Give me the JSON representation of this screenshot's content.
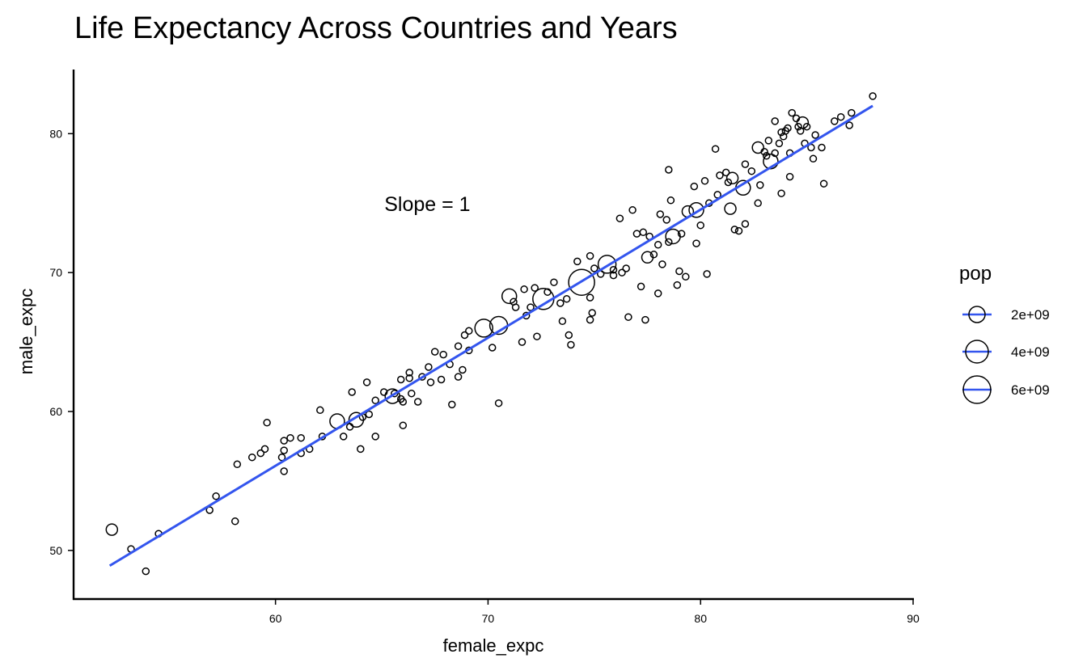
{
  "chart_data": {
    "type": "scatter",
    "title": "Life Expectancy Across Countries and Years",
    "xlabel": "female_expc",
    "ylabel": "male_expc",
    "xlim": [
      50.5,
      90
    ],
    "ylim": [
      46.5,
      84.5
    ],
    "xticks": [
      60,
      70,
      80,
      90
    ],
    "yticks": [
      50,
      60,
      70,
      80
    ],
    "grid": false,
    "annotation": {
      "text": "Slope = 1",
      "x": 70,
      "y": 74.9
    },
    "fit_line": {
      "x": [
        52.2,
        88.1
      ],
      "y": [
        48.9,
        82.0
      ],
      "color": "#3355ee"
    },
    "size_legend": {
      "title": "pop",
      "position": "right",
      "entries": [
        {
          "label": "2e+09",
          "value": 2000000000
        },
        {
          "label": "4e+09",
          "value": 4000000000
        },
        {
          "label": "6e+09",
          "value": 6000000000
        }
      ]
    },
    "points": [
      [
        52.3,
        51.5,
        2
      ],
      [
        53.2,
        50.1,
        1
      ],
      [
        53.9,
        48.5,
        1
      ],
      [
        54.5,
        51.2,
        1
      ],
      [
        56.9,
        52.9,
        1
      ],
      [
        57.2,
        53.9,
        1
      ],
      [
        58.1,
        52.1,
        1
      ],
      [
        58.2,
        56.2,
        1
      ],
      [
        58.9,
        56.7,
        1
      ],
      [
        59.3,
        57.0,
        1
      ],
      [
        59.5,
        57.3,
        1
      ],
      [
        59.6,
        59.2,
        1
      ],
      [
        60.3,
        56.7,
        1
      ],
      [
        60.4,
        55.7,
        1
      ],
      [
        60.4,
        57.2,
        1
      ],
      [
        60.4,
        57.9,
        1
      ],
      [
        60.7,
        58.1,
        1
      ],
      [
        61.2,
        58.1,
        1
      ],
      [
        61.2,
        57.0,
        1
      ],
      [
        61.6,
        57.3,
        1
      ],
      [
        62.1,
        60.1,
        1
      ],
      [
        62.2,
        58.2,
        1
      ],
      [
        62.9,
        59.3,
        3
      ],
      [
        63.2,
        58.2,
        1
      ],
      [
        63.5,
        58.9,
        1
      ],
      [
        63.6,
        61.4,
        1
      ],
      [
        63.8,
        59.4,
        3
      ],
      [
        64.0,
        57.3,
        1
      ],
      [
        64.1,
        59.6,
        1
      ],
      [
        64.3,
        62.1,
        1
      ],
      [
        64.4,
        59.8,
        1
      ],
      [
        64.7,
        58.2,
        1
      ],
      [
        64.7,
        60.8,
        1
      ],
      [
        65.1,
        61.4,
        1
      ],
      [
        65.5,
        61.1,
        3
      ],
      [
        65.6,
        61.3,
        1
      ],
      [
        65.9,
        60.9,
        1
      ],
      [
        65.9,
        62.3,
        1
      ],
      [
        66.0,
        60.7,
        1
      ],
      [
        66.0,
        59.0,
        1
      ],
      [
        66.3,
        62.4,
        1
      ],
      [
        66.3,
        62.8,
        1
      ],
      [
        66.4,
        61.3,
        1
      ],
      [
        66.7,
        60.7,
        1
      ],
      [
        66.9,
        62.5,
        1
      ],
      [
        67.2,
        63.2,
        1
      ],
      [
        67.3,
        62.1,
        1
      ],
      [
        67.5,
        64.3,
        1
      ],
      [
        67.8,
        62.3,
        1
      ],
      [
        67.9,
        64.1,
        1
      ],
      [
        68.2,
        63.4,
        1
      ],
      [
        68.3,
        60.5,
        1
      ],
      [
        68.6,
        62.5,
        1
      ],
      [
        68.6,
        64.7,
        1
      ],
      [
        68.8,
        63.0,
        1
      ],
      [
        68.9,
        65.5,
        1
      ],
      [
        69.1,
        65.8,
        1
      ],
      [
        69.1,
        64.4,
        1
      ],
      [
        69.8,
        66.0,
        4
      ],
      [
        70.2,
        64.6,
        1
      ],
      [
        70.5,
        66.2,
        4
      ],
      [
        70.5,
        60.6,
        1
      ],
      [
        71.0,
        68.3,
        3
      ],
      [
        71.2,
        67.9,
        1
      ],
      [
        71.3,
        67.5,
        1
      ],
      [
        71.6,
        65.0,
        1
      ],
      [
        71.7,
        68.8,
        1
      ],
      [
        71.8,
        66.9,
        1
      ],
      [
        72.0,
        67.5,
        1
      ],
      [
        72.2,
        68.9,
        1
      ],
      [
        72.3,
        65.4,
        1
      ],
      [
        72.6,
        68.1,
        5
      ],
      [
        72.8,
        68.6,
        1
      ],
      [
        73.1,
        69.3,
        1
      ],
      [
        73.4,
        67.8,
        1
      ],
      [
        73.5,
        66.5,
        1
      ],
      [
        73.7,
        68.1,
        1
      ],
      [
        73.8,
        65.5,
        1
      ],
      [
        73.9,
        64.8,
        1
      ],
      [
        74.2,
        70.8,
        1
      ],
      [
        74.4,
        69.3,
        6
      ],
      [
        74.8,
        71.2,
        1
      ],
      [
        74.8,
        66.6,
        1
      ],
      [
        74.8,
        68.2,
        1
      ],
      [
        74.9,
        67.1,
        1
      ],
      [
        75.0,
        70.3,
        1
      ],
      [
        75.3,
        69.9,
        1
      ],
      [
        75.6,
        70.6,
        4
      ],
      [
        75.9,
        69.8,
        1
      ],
      [
        75.9,
        70.2,
        1
      ],
      [
        76.2,
        73.9,
        1
      ],
      [
        76.3,
        70.0,
        1
      ],
      [
        76.5,
        70.3,
        1
      ],
      [
        76.6,
        66.8,
        1
      ],
      [
        76.8,
        74.5,
        1
      ],
      [
        77.0,
        72.8,
        1
      ],
      [
        77.2,
        69.0,
        1
      ],
      [
        77.4,
        66.6,
        1
      ],
      [
        77.3,
        72.9,
        1
      ],
      [
        77.5,
        71.1,
        2
      ],
      [
        77.6,
        72.6,
        1
      ],
      [
        77.8,
        71.3,
        1
      ],
      [
        78.0,
        72.0,
        1
      ],
      [
        78.1,
        74.2,
        1
      ],
      [
        78.0,
        68.5,
        1
      ],
      [
        78.2,
        70.6,
        1
      ],
      [
        78.4,
        73.8,
        1
      ],
      [
        78.5,
        77.4,
        1
      ],
      [
        78.5,
        72.2,
        1
      ],
      [
        78.6,
        75.2,
        1
      ],
      [
        78.7,
        72.6,
        3
      ],
      [
        78.9,
        69.1,
        1
      ],
      [
        79.0,
        70.1,
        1
      ],
      [
        79.1,
        72.8,
        1
      ],
      [
        79.3,
        69.7,
        1
      ],
      [
        79.4,
        74.4,
        2
      ],
      [
        79.7,
        76.2,
        1
      ],
      [
        79.8,
        74.5,
        3
      ],
      [
        79.8,
        72.1,
        1
      ],
      [
        80.0,
        73.4,
        1
      ],
      [
        80.2,
        76.6,
        1
      ],
      [
        80.4,
        75.0,
        1
      ],
      [
        80.3,
        69.9,
        1
      ],
      [
        80.7,
        78.9,
        1
      ],
      [
        80.8,
        75.6,
        1
      ],
      [
        80.9,
        77.0,
        1
      ],
      [
        81.2,
        77.2,
        1
      ],
      [
        81.3,
        76.5,
        1
      ],
      [
        81.4,
        74.6,
        2
      ],
      [
        81.5,
        76.8,
        2
      ],
      [
        81.6,
        73.1,
        1
      ],
      [
        81.8,
        73.0,
        1
      ],
      [
        82.0,
        76.1,
        3
      ],
      [
        82.1,
        77.8,
        1
      ],
      [
        82.1,
        73.5,
        1
      ],
      [
        82.4,
        77.3,
        1
      ],
      [
        82.7,
        79.0,
        2
      ],
      [
        82.7,
        75.0,
        1
      ],
      [
        82.8,
        76.3,
        1
      ],
      [
        83.0,
        78.7,
        1
      ],
      [
        83.1,
        78.4,
        1
      ],
      [
        83.2,
        79.5,
        1
      ],
      [
        83.3,
        78.0,
        3
      ],
      [
        83.5,
        78.6,
        1
      ],
      [
        83.5,
        80.9,
        1
      ],
      [
        83.7,
        79.3,
        1
      ],
      [
        83.8,
        80.1,
        1
      ],
      [
        83.8,
        75.7,
        1
      ],
      [
        83.9,
        79.8,
        1
      ],
      [
        84.0,
        80.2,
        1
      ],
      [
        84.1,
        80.4,
        1
      ],
      [
        84.2,
        78.6,
        1
      ],
      [
        84.2,
        76.9,
        1
      ],
      [
        84.3,
        81.5,
        1
      ],
      [
        84.5,
        81.1,
        1
      ],
      [
        84.6,
        80.5,
        1
      ],
      [
        84.7,
        80.2,
        1
      ],
      [
        84.8,
        80.8,
        2
      ],
      [
        84.9,
        79.3,
        1
      ],
      [
        85.0,
        80.5,
        1
      ],
      [
        85.2,
        79.0,
        1
      ],
      [
        85.3,
        78.2,
        1
      ],
      [
        85.4,
        79.9,
        1
      ],
      [
        85.7,
        79.0,
        1
      ],
      [
        85.8,
        76.4,
        1
      ],
      [
        86.3,
        80.9,
        1
      ],
      [
        86.6,
        81.2,
        1
      ],
      [
        87.0,
        80.6,
        1
      ],
      [
        87.1,
        81.5,
        1
      ],
      [
        88.1,
        82.7,
        1
      ]
    ]
  }
}
